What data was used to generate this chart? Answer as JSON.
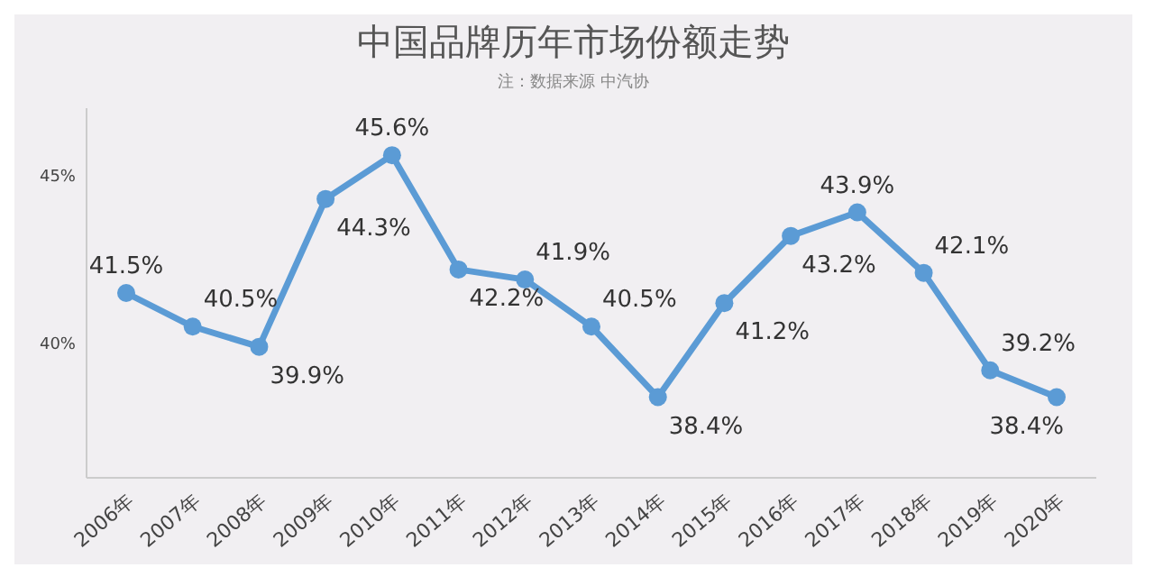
{
  "chart_data": {
    "type": "line",
    "title": "中国品牌历年市场份额走势",
    "subtitle": "注：数据来源 中汽协",
    "categories": [
      "2006年",
      "2007年",
      "2008年",
      "2009年",
      "2010年",
      "2011年",
      "2012年",
      "2013年",
      "2014年",
      "2015年",
      "2016年",
      "2017年",
      "2018年",
      "2019年",
      "2020年"
    ],
    "series": [
      {
        "color": "#5b9bd5",
        "values": [
          41.5,
          40.5,
          39.9,
          44.3,
          45.6,
          42.2,
          41.9,
          40.5,
          38.4,
          41.2,
          43.2,
          43.9,
          42.1,
          39.2,
          38.4
        ],
        "value_labels": [
          "41.5%",
          "40.5%",
          "39.9%",
          "44.3%",
          "45.6%",
          "42.2%",
          "41.9%",
          "40.5%",
          "38.4%",
          "41.2%",
          "43.2%",
          "43.9%",
          "42.1%",
          "39.2%",
          "38.4%"
        ]
      }
    ],
    "ylim": [
      36,
      47
    ],
    "yticks": [
      {
        "value": 40,
        "label": "40%"
      },
      {
        "value": 45,
        "label": "45%"
      }
    ],
    "marker": "circle",
    "grid": false
  }
}
